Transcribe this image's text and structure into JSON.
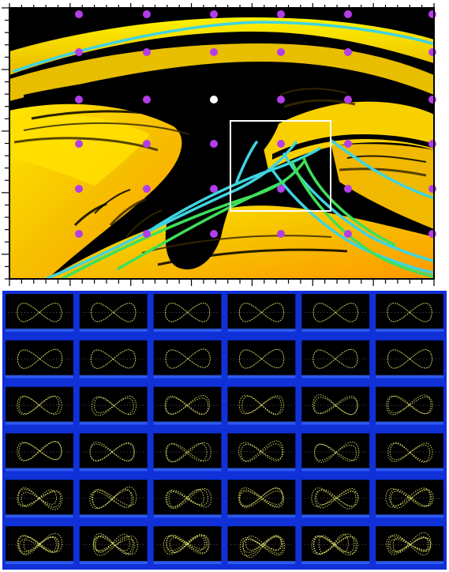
{
  "colors": {
    "background": "#000000",
    "basin_dark": "#e9a800",
    "basin_light": "#ffe600",
    "orange": "#ff9a00",
    "cyan_curve": "#3fd4e0",
    "green_curve": "#3ee05a",
    "grid_point": "#b33ee8",
    "highlight_point": "#ffffff",
    "zoom_box": "#ffffff",
    "axis": "#000000",
    "cell_border": "#1432d8",
    "cell_background": "#000000",
    "orbit": "#f0f070"
  },
  "top_plot": {
    "grid": {
      "rows": 6,
      "cols": 6,
      "highlight": {
        "row": 2,
        "col": 2
      }
    },
    "zoom_box": true
  },
  "grid_panel": {
    "rows": 6,
    "cols": 6,
    "cell_content": "figure-eight-orbit"
  }
}
